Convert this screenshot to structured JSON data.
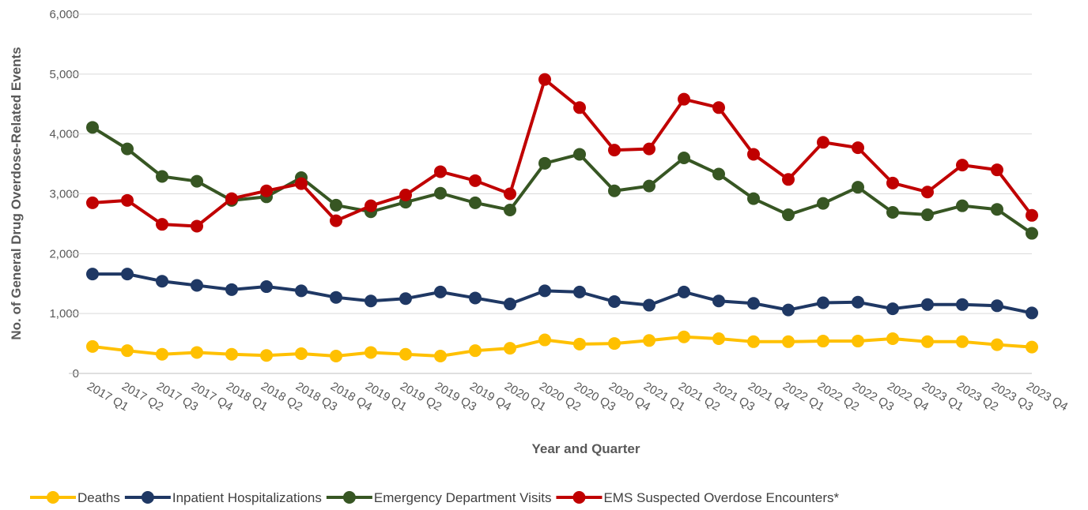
{
  "chart_data": {
    "type": "line",
    "x_label": "Year and Quarter",
    "y_label": "No. of General Drug Overdose-Related Events",
    "categories": [
      "2017 Q1",
      "2017 Q2",
      "2017 Q3",
      "2017 Q4",
      "2018 Q1",
      "2018 Q2",
      "2018 Q3",
      "2018 Q4",
      "2019 Q1",
      "2019 Q2",
      "2019 Q3",
      "2019 Q4",
      "2020 Q1",
      "2020 Q2",
      "2020 Q3",
      "2020 Q4",
      "2021 Q1",
      "2021 Q2",
      "2021 Q3",
      "2021 Q4",
      "2022 Q1",
      "2022 Q2",
      "2022 Q3",
      "2022 Q4",
      "2023 Q1",
      "2023 Q2",
      "2023 Q3",
      "2023 Q4"
    ],
    "series": [
      {
        "name": "Deaths",
        "color": "#ffc000",
        "values": [
          450,
          380,
          320,
          350,
          320,
          300,
          330,
          290,
          350,
          320,
          290,
          380,
          420,
          560,
          490,
          500,
          550,
          610,
          580,
          530,
          530,
          540,
          540,
          580,
          530,
          530,
          480,
          440
        ]
      },
      {
        "name": "Inpatient Hospitalizations",
        "color": "#1f3864",
        "values": [
          1660,
          1660,
          1540,
          1470,
          1400,
          1450,
          1380,
          1270,
          1210,
          1250,
          1360,
          1260,
          1160,
          1380,
          1360,
          1200,
          1140,
          1360,
          1210,
          1170,
          1060,
          1180,
          1190,
          1080,
          1150,
          1150,
          1130,
          1010
        ]
      },
      {
        "name": "Emergency Department Visits",
        "color": "#375623",
        "values": [
          4110,
          3750,
          3290,
          3210,
          2890,
          2950,
          3270,
          2810,
          2700,
          2860,
          3010,
          2850,
          2730,
          3510,
          3660,
          3050,
          3130,
          3600,
          3330,
          2920,
          2650,
          2840,
          3110,
          2690,
          2650,
          2800,
          2740,
          2340
        ]
      },
      {
        "name": "EMS Suspected Overdose Encounters*",
        "color": "#c00000",
        "values": [
          2850,
          2890,
          2490,
          2460,
          2920,
          3050,
          3170,
          2550,
          2800,
          2980,
          3370,
          3220,
          3000,
          4910,
          4440,
          3730,
          3750,
          4580,
          4440,
          3660,
          3240,
          3860,
          3770,
          3180,
          3030,
          3480,
          3400,
          2640
        ]
      }
    ],
    "ylim": [
      0,
      6000
    ],
    "yticks": [
      0,
      {
        "value": 1000,
        "label": "1,000"
      },
      {
        "value": 2000,
        "label": "2,000"
      },
      {
        "value": 3000,
        "label": "3,000"
      },
      {
        "value": 4000,
        "label": "4,000"
      },
      {
        "value": 5000,
        "label": "5,000"
      },
      {
        "value": 6000,
        "label": "6,000"
      }
    ],
    "grid": true
  }
}
